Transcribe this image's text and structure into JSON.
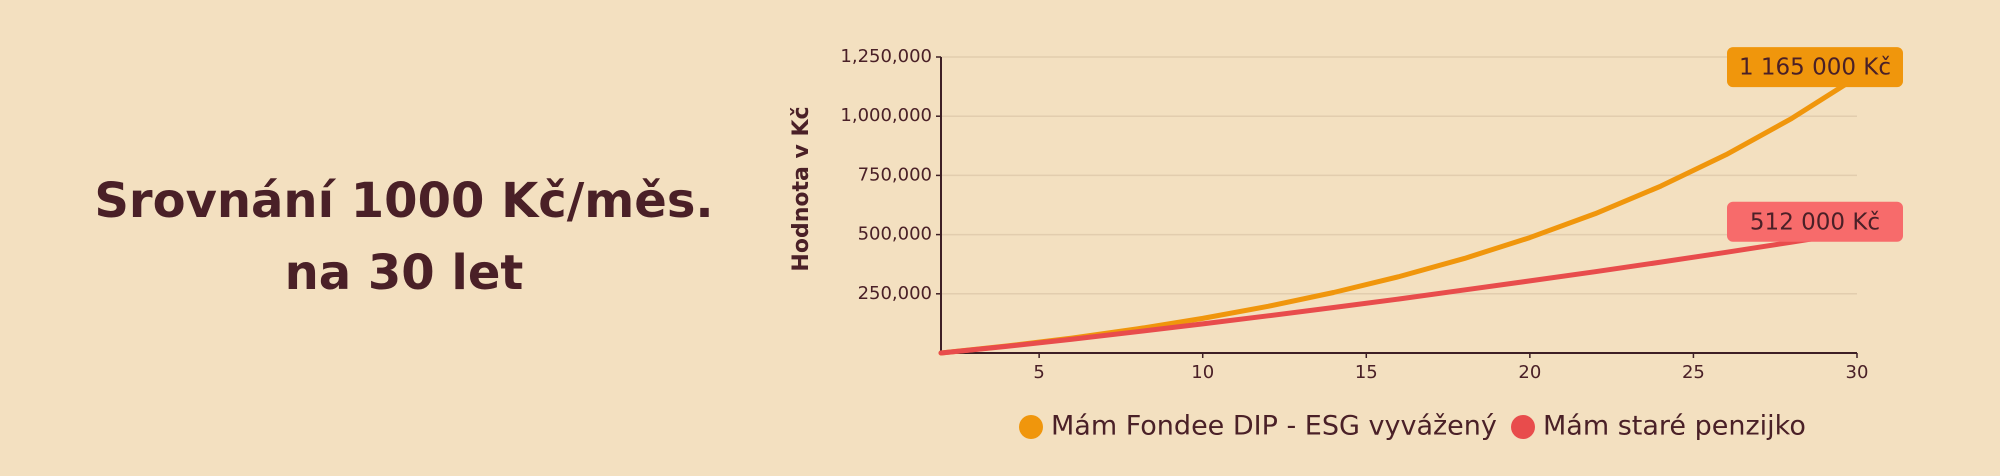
{
  "chart_data": {
    "type": "line",
    "title": [
      "Srovnání 1000 Kč/měs.",
      "na 30 let"
    ],
    "y_label": "Hodnota v Kč",
    "x": [
      2,
      4,
      6,
      8,
      10,
      12,
      14,
      16,
      18,
      20,
      22,
      24,
      26,
      28,
      30
    ],
    "series": [
      {
        "name": "Mám Fondee DIP - ESG vyvážený",
        "color": "#f0960c",
        "values": [
          0,
          29400,
          63100,
          101800,
          146200,
          197100,
          255500,
          322500,
          399300,
          487400,
          588500,
          704500,
          837500,
          990100,
          1165000
        ],
        "label_color": "#f0960c",
        "value_labels": [
          null,
          null,
          null,
          null,
          null,
          null,
          null,
          null,
          null,
          null,
          null,
          null,
          null,
          null,
          "1 165 000 Kč"
        ]
      },
      {
        "name": "Mám staré penzijko",
        "color": "#e84c4c",
        "values": [
          0,
          28000,
          58000,
          90000,
          123000,
          157000,
          192000,
          228000,
          266400,
          304600,
          343400,
          383700,
          425200,
          468000,
          512000
        ],
        "label_color": "#f76b6b",
        "value_labels": [
          null,
          null,
          null,
          null,
          null,
          null,
          null,
          null,
          null,
          null,
          null,
          null,
          null,
          null,
          "512 000 Kč"
        ]
      }
    ],
    "xlim": [
      2,
      30
    ],
    "ylim": [
      0,
      1250000
    ],
    "xticks": [
      5,
      10,
      15,
      20,
      25,
      30
    ],
    "yticks": [
      {
        "value": 250000,
        "label": "250,000"
      },
      {
        "value": 500000,
        "label": "500,000"
      },
      {
        "value": 750000,
        "label": "750,000"
      },
      {
        "value": 1000000,
        "label": "1,000,000"
      },
      {
        "value": 1250000,
        "label": "1,250,000"
      }
    ],
    "grid": true
  }
}
